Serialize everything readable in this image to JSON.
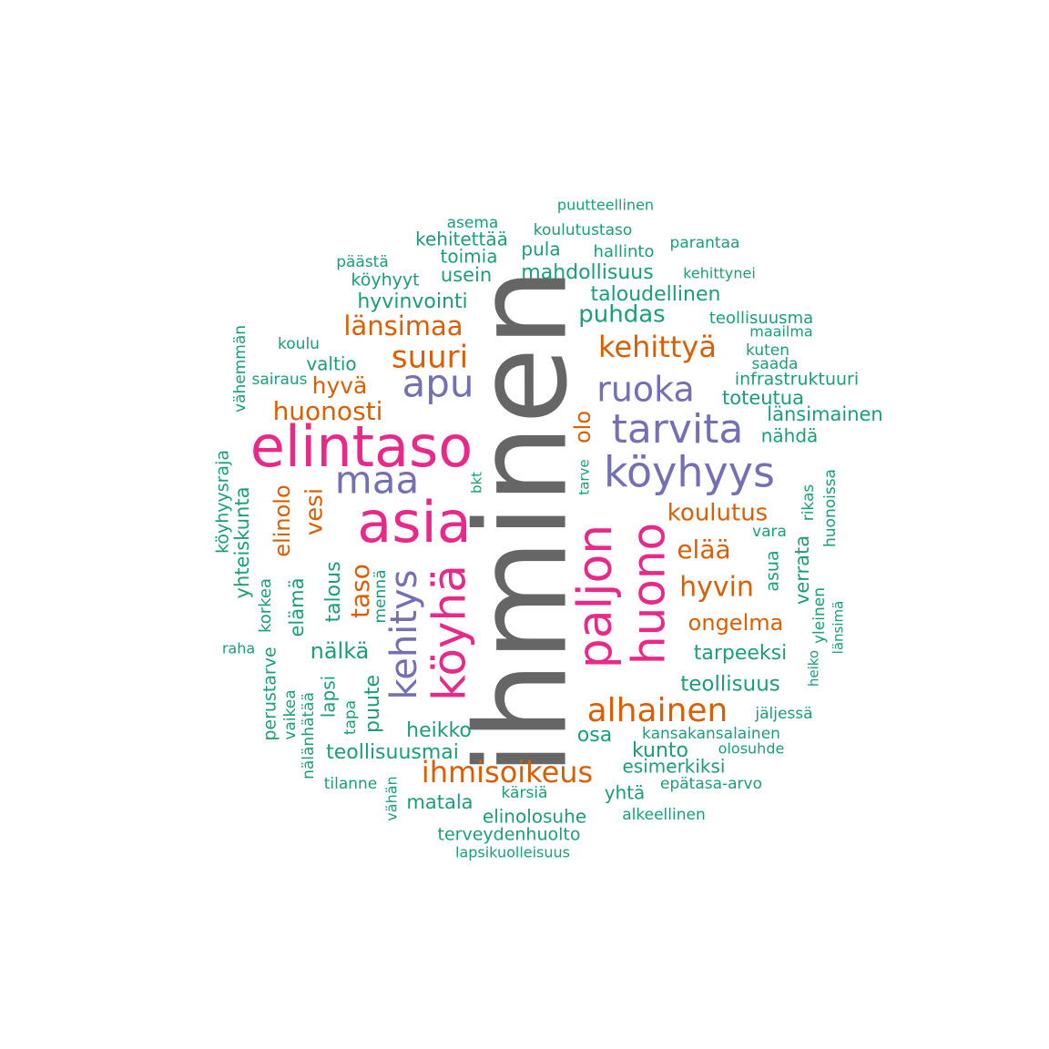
{
  "colors": {
    "gray": "#666666",
    "pink": "#e7298a",
    "purple": "#7570b3",
    "orange": "#d95f02",
    "green": "#1b9e77"
  },
  "words": [
    {
      "text": "ihminen",
      "color": "gray"
    },
    {
      "text": "elintaso",
      "color": "pink"
    },
    {
      "text": "asia",
      "color": "pink"
    },
    {
      "text": "köyhä",
      "color": "pink"
    },
    {
      "text": "paljon",
      "color": "pink"
    },
    {
      "text": "huono",
      "color": "pink"
    },
    {
      "text": "köyhyys",
      "color": "purple"
    },
    {
      "text": "tarvita",
      "color": "purple"
    },
    {
      "text": "maa",
      "color": "purple"
    },
    {
      "text": "apu",
      "color": "purple"
    },
    {
      "text": "ruoka",
      "color": "purple"
    },
    {
      "text": "kehitys",
      "color": "purple"
    },
    {
      "text": "alhainen",
      "color": "orange"
    },
    {
      "text": "ihmisoikeus",
      "color": "orange"
    },
    {
      "text": "kehittyä",
      "color": "orange"
    },
    {
      "text": "suuri",
      "color": "orange"
    },
    {
      "text": "länsimaa",
      "color": "orange"
    },
    {
      "text": "huonosti",
      "color": "orange"
    },
    {
      "text": "hyvä",
      "color": "orange"
    },
    {
      "text": "koulutus",
      "color": "orange"
    },
    {
      "text": "elää",
      "color": "orange"
    },
    {
      "text": "hyvin",
      "color": "orange"
    },
    {
      "text": "ongelma",
      "color": "orange"
    },
    {
      "text": "olo",
      "color": "orange"
    },
    {
      "text": "vesi",
      "color": "orange"
    },
    {
      "text": "elinolo",
      "color": "orange"
    },
    {
      "text": "taso",
      "color": "orange"
    },
    {
      "text": "puutteellinen",
      "color": "green"
    },
    {
      "text": "asema",
      "color": "green"
    },
    {
      "text": "koulutustaso",
      "color": "green"
    },
    {
      "text": "kehitettää",
      "color": "green"
    },
    {
      "text": "pula",
      "color": "green"
    },
    {
      "text": "hallinto",
      "color": "green"
    },
    {
      "text": "parantaa",
      "color": "green"
    },
    {
      "text": "toimia",
      "color": "green"
    },
    {
      "text": "päästä",
      "color": "green"
    },
    {
      "text": "köyhyyt",
      "color": "green"
    },
    {
      "text": "usein",
      "color": "green"
    },
    {
      "text": "mahdollisuus",
      "color": "green"
    },
    {
      "text": "kehittynei",
      "color": "green"
    },
    {
      "text": "taloudellinen",
      "color": "green"
    },
    {
      "text": "hyvinvointi",
      "color": "green"
    },
    {
      "text": "puhdas",
      "color": "green"
    },
    {
      "text": "teollisuusma",
      "color": "green"
    },
    {
      "text": "maailma",
      "color": "green"
    },
    {
      "text": "koulu",
      "color": "green"
    },
    {
      "text": "kuten",
      "color": "green"
    },
    {
      "text": "saada",
      "color": "green"
    },
    {
      "text": "valtio",
      "color": "green"
    },
    {
      "text": "sairaus",
      "color": "green"
    },
    {
      "text": "infrastruktuuri",
      "color": "green"
    },
    {
      "text": "toteutua",
      "color": "green"
    },
    {
      "text": "länsimainen",
      "color": "green"
    },
    {
      "text": "nähdä",
      "color": "green"
    },
    {
      "text": "vähemmän",
      "color": "green"
    },
    {
      "text": "köyhyysraja",
      "color": "green"
    },
    {
      "text": "yhteiskunta",
      "color": "green"
    },
    {
      "text": "bkt",
      "color": "green"
    },
    {
      "text": "tarve",
      "color": "green"
    },
    {
      "text": "rikas",
      "color": "green"
    },
    {
      "text": "huonoissa",
      "color": "green"
    },
    {
      "text": "vara",
      "color": "green"
    },
    {
      "text": "verrata",
      "color": "green"
    },
    {
      "text": "asua",
      "color": "green"
    },
    {
      "text": "korkea",
      "color": "green"
    },
    {
      "text": "talous",
      "color": "green"
    },
    {
      "text": "mennä",
      "color": "green"
    },
    {
      "text": "elämä",
      "color": "green"
    },
    {
      "text": "yleinen",
      "color": "green"
    },
    {
      "text": "länsimä",
      "color": "green"
    },
    {
      "text": "raha",
      "color": "green"
    },
    {
      "text": "nälkä",
      "color": "green"
    },
    {
      "text": "tarpeeksi",
      "color": "green"
    },
    {
      "text": "heiko",
      "color": "green"
    },
    {
      "text": "perustarve",
      "color": "green"
    },
    {
      "text": "vaikea",
      "color": "green"
    },
    {
      "text": "nälänhätää",
      "color": "green"
    },
    {
      "text": "lapsi",
      "color": "green"
    },
    {
      "text": "tapa",
      "color": "green"
    },
    {
      "text": "puute",
      "color": "green"
    },
    {
      "text": "teollisuus",
      "color": "green"
    },
    {
      "text": "jäljessä",
      "color": "green"
    },
    {
      "text": "heikko",
      "color": "green"
    },
    {
      "text": "osa",
      "color": "green"
    },
    {
      "text": "kansakansalainen",
      "color": "green"
    },
    {
      "text": "teollisuusmai",
      "color": "green"
    },
    {
      "text": "kunto",
      "color": "green"
    },
    {
      "text": "olosuhde",
      "color": "green"
    },
    {
      "text": "esimerkiksi",
      "color": "green"
    },
    {
      "text": "tilanne",
      "color": "green"
    },
    {
      "text": "epätasa-arvo",
      "color": "green"
    },
    {
      "text": "vähän",
      "color": "green"
    },
    {
      "text": "kärsiä",
      "color": "green"
    },
    {
      "text": "yhtä",
      "color": "green"
    },
    {
      "text": "matala",
      "color": "green"
    },
    {
      "text": "elinolosuhe",
      "color": "green"
    },
    {
      "text": "alkeellinen",
      "color": "green"
    },
    {
      "text": "terveydenhuolto",
      "color": "green"
    },
    {
      "text": "lapsikuolleisuus",
      "color": "green"
    }
  ]
}
